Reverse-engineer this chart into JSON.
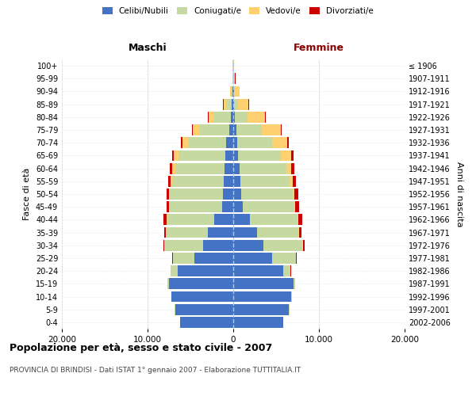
{
  "age_groups": [
    "0-4",
    "5-9",
    "10-14",
    "15-19",
    "20-24",
    "25-29",
    "30-34",
    "35-39",
    "40-44",
    "45-49",
    "50-54",
    "55-59",
    "60-64",
    "65-69",
    "70-74",
    "75-79",
    "80-84",
    "85-89",
    "90-94",
    "95-99",
    "100+"
  ],
  "birth_years": [
    "2002-2006",
    "1997-2001",
    "1992-1996",
    "1987-1991",
    "1982-1986",
    "1977-1981",
    "1972-1976",
    "1967-1971",
    "1962-1966",
    "1957-1961",
    "1952-1956",
    "1947-1951",
    "1942-1946",
    "1937-1941",
    "1932-1936",
    "1927-1931",
    "1922-1926",
    "1917-1921",
    "1912-1916",
    "1907-1911",
    "≤ 1906"
  ],
  "males": {
    "celibi": [
      6200,
      6800,
      7200,
      7500,
      6500,
      4500,
      3500,
      3000,
      2200,
      1300,
      1200,
      1100,
      1000,
      900,
      800,
      500,
      300,
      150,
      60,
      30,
      20
    ],
    "coniugati": [
      20,
      30,
      50,
      200,
      800,
      2500,
      4500,
      4800,
      5500,
      6100,
      6200,
      6000,
      5800,
      5500,
      4500,
      3500,
      2000,
      700,
      200,
      60,
      30
    ],
    "vedovi": [
      5,
      5,
      5,
      5,
      10,
      20,
      30,
      40,
      60,
      80,
      100,
      200,
      300,
      500,
      600,
      700,
      600,
      300,
      100,
      30,
      10
    ],
    "divorziati": [
      5,
      5,
      5,
      10,
      30,
      80,
      150,
      250,
      350,
      300,
      300,
      300,
      280,
      250,
      200,
      150,
      50,
      30,
      20,
      10,
      5
    ]
  },
  "females": {
    "nubili": [
      5800,
      6500,
      6800,
      7000,
      5800,
      4500,
      3500,
      2800,
      1900,
      1100,
      900,
      800,
      700,
      600,
      500,
      350,
      200,
      100,
      60,
      30,
      20
    ],
    "coniugate": [
      20,
      30,
      50,
      200,
      900,
      2800,
      4600,
      4800,
      5600,
      6000,
      6000,
      5800,
      5500,
      5000,
      4000,
      3000,
      1500,
      500,
      150,
      50,
      20
    ],
    "vedove": [
      5,
      5,
      5,
      5,
      10,
      20,
      40,
      50,
      80,
      120,
      200,
      350,
      600,
      1200,
      1800,
      2200,
      2000,
      1200,
      500,
      150,
      60
    ],
    "divorziate": [
      5,
      5,
      5,
      10,
      30,
      100,
      200,
      350,
      500,
      450,
      450,
      400,
      300,
      200,
      150,
      100,
      50,
      40,
      20,
      10,
      5
    ]
  },
  "colors": {
    "celibi_nubili": "#4472C4",
    "coniugati": "#C5D9A0",
    "vedovi": "#FFD070",
    "divorziati": "#CC0000"
  },
  "xlim": 20000,
  "title": "Popolazione per età, sesso e stato civile - 2007",
  "subtitle": "PROVINCIA DI BRINDISI - Dati ISTAT 1° gennaio 2007 - Elaborazione TUTTITALIA.IT",
  "xlabel_left": "Maschi",
  "xlabel_right": "Femmine",
  "ylabel_left": "Fasce di età",
  "ylabel_right": "Anni di nascita",
  "legend_labels": [
    "Celibi/Nubili",
    "Coniugati/e",
    "Vedovi/e",
    "Divorziati/e"
  ]
}
